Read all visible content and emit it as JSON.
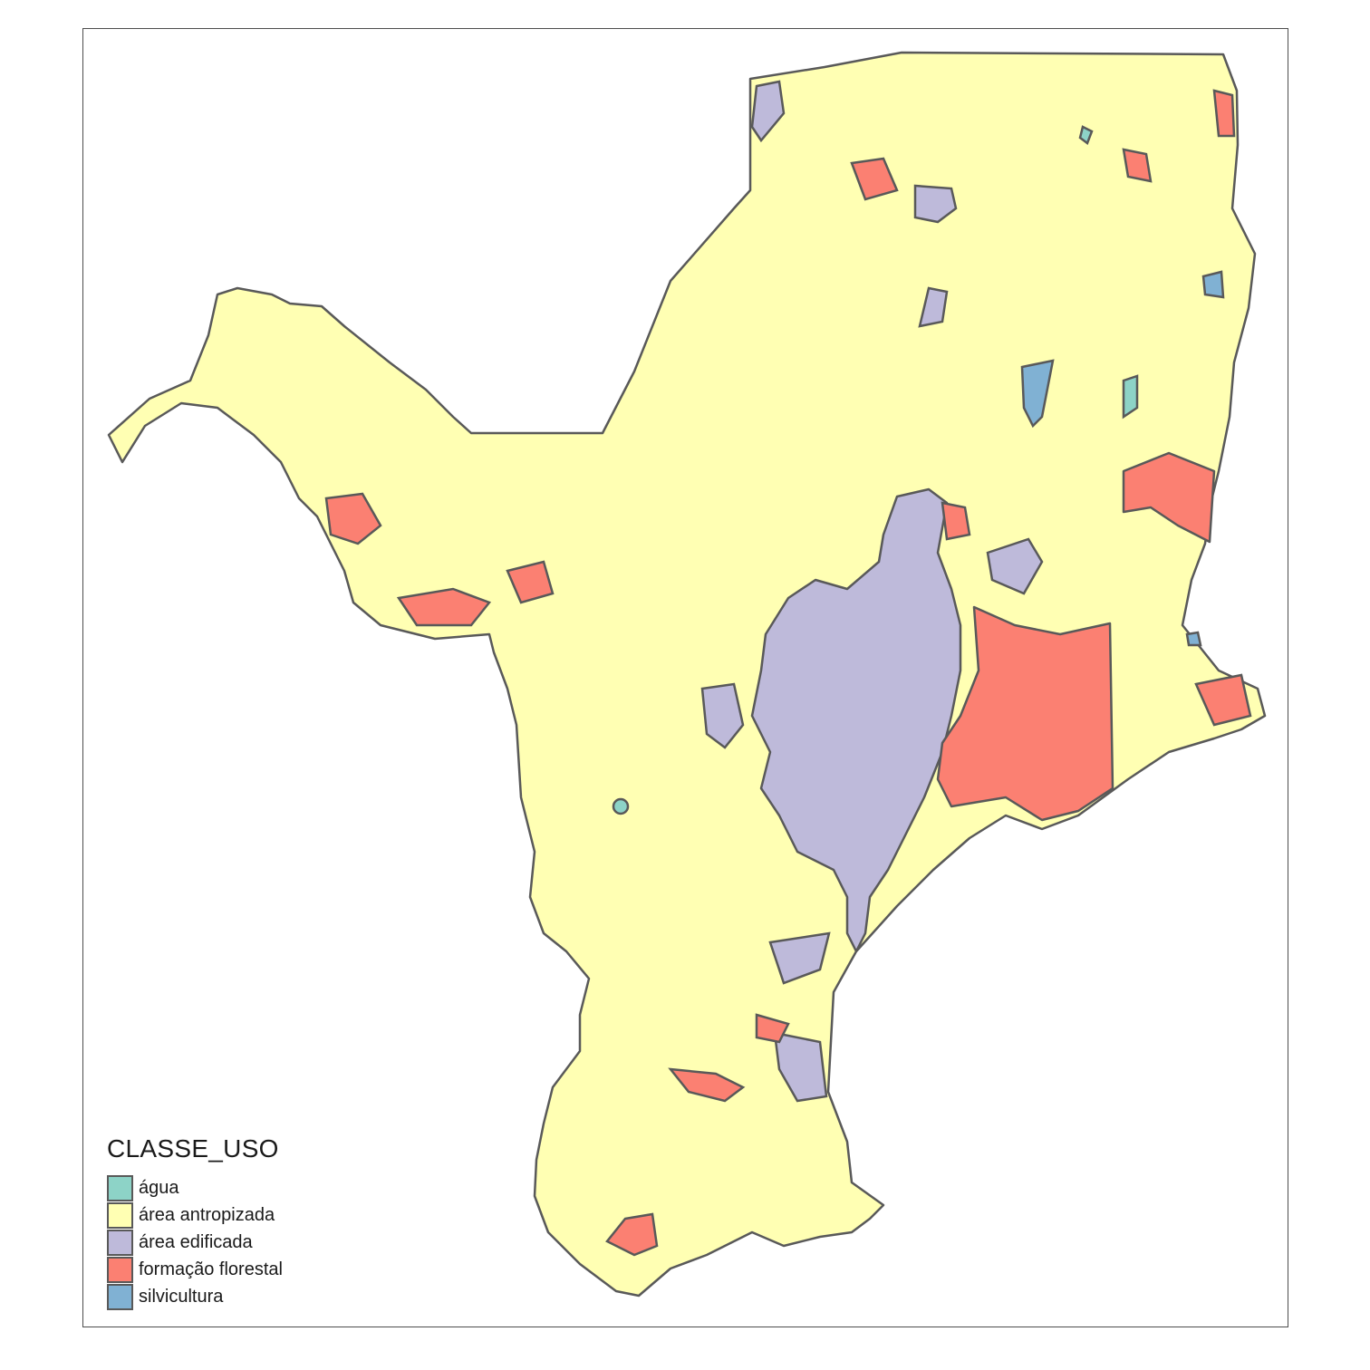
{
  "map": {
    "legend": {
      "title": "CLASSE_USO",
      "items": [
        {
          "label": "água",
          "color": "#8dd3c7"
        },
        {
          "label": "área antropizada",
          "color": "#ffffb3"
        },
        {
          "label": "área edificada",
          "color": "#bebada"
        },
        {
          "label": "formação florestal",
          "color": "#fb8072"
        },
        {
          "label": "silvicultura",
          "color": "#80b1d3"
        }
      ]
    },
    "colors": {
      "outline": "#595959",
      "frame": "#4d4d4d",
      "background": "#ffffff"
    }
  }
}
